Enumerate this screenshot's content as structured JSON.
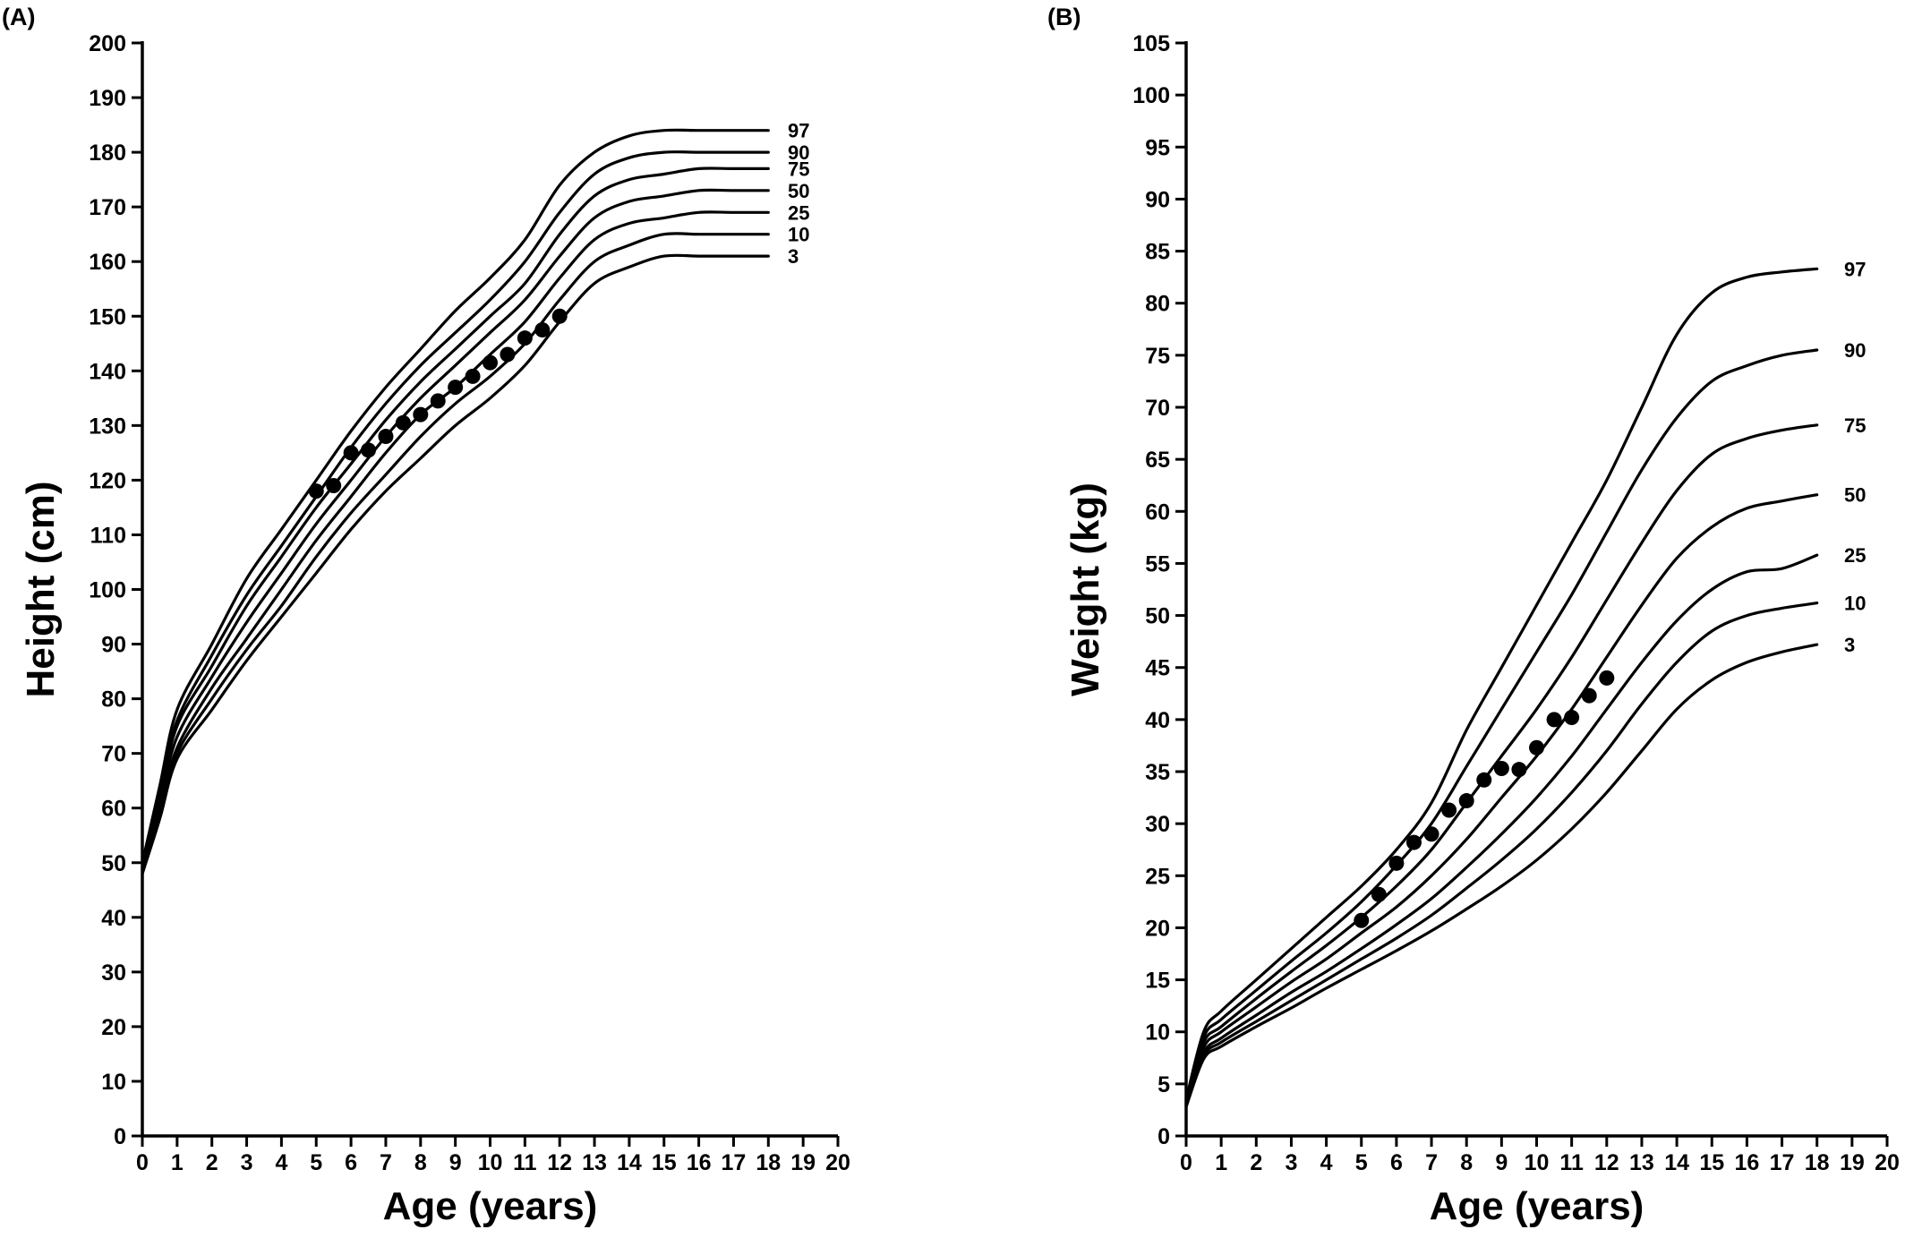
{
  "chart_data": [
    {
      "type": "line",
      "panel_label": "(A)",
      "title": "",
      "xlabel": "Age (years)",
      "ylabel": "Height (cm)",
      "xlim": [
        0,
        20
      ],
      "ylim": [
        0,
        200
      ],
      "x_ticks": [
        0,
        1,
        2,
        3,
        4,
        5,
        6,
        7,
        8,
        9,
        10,
        11,
        12,
        13,
        14,
        15,
        16,
        17,
        18,
        19,
        20
      ],
      "y_ticks": [
        0,
        10,
        20,
        30,
        40,
        50,
        60,
        70,
        80,
        90,
        100,
        110,
        120,
        130,
        140,
        150,
        160,
        170,
        180,
        190,
        200
      ],
      "grid": false,
      "legend": "none",
      "x": [
        0,
        0.5,
        1,
        2,
        3,
        4,
        5,
        6,
        7,
        8,
        9,
        10,
        11,
        12,
        13,
        14,
        15,
        16,
        17,
        18
      ],
      "series": [
        {
          "name": "97",
          "values": [
            50,
            64,
            78,
            90,
            102,
            111,
            120,
            129,
            137,
            144,
            151,
            157,
            164,
            174,
            180,
            183,
            184,
            184,
            184,
            184
          ]
        },
        {
          "name": "90",
          "values": [
            50,
            63,
            76,
            88,
            99,
            108,
            117,
            126,
            134,
            141,
            147,
            153,
            160,
            169,
            176,
            179,
            180,
            180,
            180,
            180
          ]
        },
        {
          "name": "75",
          "values": [
            50,
            62,
            75,
            86,
            97,
            106,
            115,
            123,
            131,
            138,
            144,
            150,
            156,
            165,
            172,
            175,
            176,
            177,
            177,
            177
          ]
        },
        {
          "name": "50",
          "values": [
            49,
            61,
            73,
            84,
            94,
            103,
            112,
            120,
            128,
            135,
            141,
            147,
            153,
            161,
            168,
            171,
            172,
            173,
            173,
            173
          ]
        },
        {
          "name": "25",
          "values": [
            49,
            60,
            71,
            82,
            91,
            100,
            109,
            117,
            125,
            132,
            137,
            143,
            149,
            157,
            164,
            167,
            168,
            169,
            169,
            169
          ]
        },
        {
          "name": "10",
          "values": [
            48,
            59,
            70,
            80,
            89,
            97,
            106,
            114,
            121,
            128,
            134,
            139,
            145,
            153,
            160,
            163,
            165,
            165,
            165,
            165
          ]
        },
        {
          "name": "3",
          "values": [
            48,
            58,
            69,
            78,
            87,
            95,
            103,
            111,
            118,
            124,
            130,
            135,
            141,
            149,
            156,
            159,
            161,
            161,
            161,
            161
          ]
        }
      ],
      "points": {
        "x": [
          5,
          5.5,
          6,
          6.5,
          7,
          7.5,
          8,
          8.5,
          9,
          9.5,
          10,
          10.5,
          11,
          11.5,
          12
        ],
        "y": [
          118,
          119,
          125,
          125.5,
          128,
          130.5,
          132,
          134.5,
          137,
          139,
          141.5,
          143,
          146,
          147.5,
          150
        ]
      }
    },
    {
      "type": "line",
      "panel_label": "(B)",
      "title": "",
      "xlabel": "Age (years)",
      "ylabel": "Weight (kg)",
      "xlim": [
        0,
        20
      ],
      "ylim": [
        0,
        105
      ],
      "x_ticks": [
        0,
        1,
        2,
        3,
        4,
        5,
        6,
        7,
        8,
        9,
        10,
        11,
        12,
        13,
        14,
        15,
        16,
        17,
        18,
        19,
        20
      ],
      "y_ticks": [
        0,
        5,
        10,
        15,
        20,
        25,
        30,
        35,
        40,
        45,
        50,
        55,
        60,
        65,
        70,
        75,
        80,
        85,
        90,
        95,
        100,
        105
      ],
      "grid": false,
      "legend": "none",
      "x": [
        0,
        0.5,
        1,
        2,
        3,
        4,
        5,
        6,
        7,
        8,
        9,
        10,
        11,
        12,
        13,
        14,
        15,
        16,
        17,
        18
      ],
      "series": [
        {
          "name": "97",
          "values": [
            3.5,
            10,
            12,
            15,
            18,
            21,
            24,
            27.5,
            32,
            39,
            45,
            51,
            57,
            63,
            70,
            77,
            81,
            82.5,
            83,
            83.3
          ]
        },
        {
          "name": "90",
          "values": [
            3.5,
            9.5,
            11.2,
            14,
            16.8,
            19.5,
            22.5,
            26,
            30,
            35.5,
            41,
            46.5,
            52,
            58,
            64,
            69,
            72.5,
            74,
            75,
            75.5
          ]
        },
        {
          "name": "75",
          "values": [
            3.3,
            9,
            10.5,
            13.2,
            15.8,
            18.3,
            21,
            24,
            27.5,
            32,
            36.5,
            41,
            46,
            51.5,
            57,
            62,
            65.5,
            67,
            67.8,
            68.3
          ]
        },
        {
          "name": "50",
          "values": [
            3.2,
            8.5,
            10,
            12.4,
            14.8,
            17,
            19.5,
            22,
            25,
            28.5,
            32.5,
            36.5,
            41,
            46,
            51,
            55.5,
            58.5,
            60.3,
            61,
            61.6
          ]
        },
        {
          "name": "25",
          "values": [
            3.1,
            8,
            9.4,
            11.6,
            13.8,
            15.8,
            18,
            20.3,
            22.8,
            25.8,
            29,
            32.5,
            36.5,
            41,
            45.5,
            49.5,
            52.5,
            54.2,
            54.5,
            55.8
          ]
        },
        {
          "name": "10",
          "values": [
            3,
            7.7,
            9,
            11,
            13,
            15,
            17,
            19,
            21.2,
            23.8,
            26.5,
            29.5,
            33,
            37,
            41.5,
            45.5,
            48.5,
            50,
            50.7,
            51.2
          ]
        },
        {
          "name": "3",
          "values": [
            2.8,
            7.4,
            8.6,
            10.5,
            12.3,
            14.2,
            16,
            17.8,
            19.7,
            21.8,
            24,
            26.5,
            29.5,
            33,
            37,
            41,
            43.8,
            45.5,
            46.5,
            47.2
          ]
        }
      ],
      "points": {
        "x": [
          5,
          5.5,
          6,
          6.5,
          7,
          7.5,
          8,
          8.5,
          9,
          9.5,
          10,
          10.5,
          11,
          11.5,
          12
        ],
        "y": [
          20.7,
          23.2,
          26.2,
          28.2,
          29,
          31.3,
          32.2,
          34.2,
          35.3,
          35.2,
          37.3,
          40,
          40.2,
          42.3,
          44
        ]
      }
    }
  ]
}
